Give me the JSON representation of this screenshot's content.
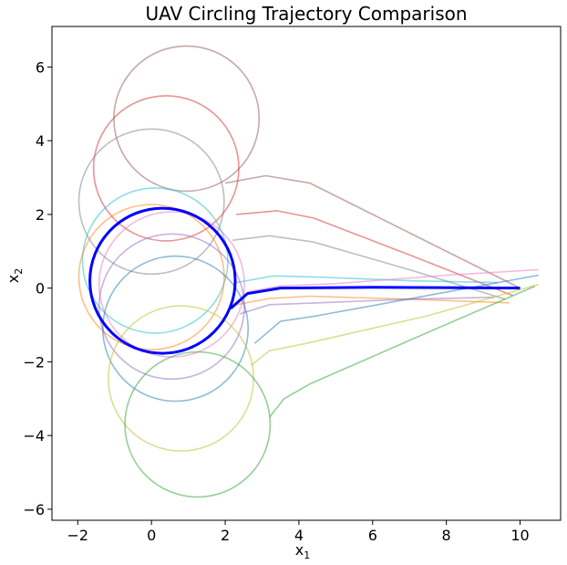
{
  "chart_data": {
    "type": "line",
    "title": "UAV Circling Trajectory Comparison",
    "xlabel": "x",
    "xlabel_sub": "1",
    "ylabel": "x",
    "ylabel_sub": "2",
    "xlim": [
      -2.7,
      11.1
    ],
    "ylim": [
      -6.3,
      7.1
    ],
    "xticks": [
      -2,
      0,
      2,
      4,
      6,
      8,
      10
    ],
    "yticks": [
      -6,
      -4,
      -2,
      0,
      2,
      4,
      6
    ],
    "xtick_labels": [
      "−2",
      "0",
      "2",
      "4",
      "6",
      "8",
      "10"
    ],
    "ytick_labels": [
      "−6",
      "−4",
      "−2",
      "0",
      "2",
      "4",
      "6"
    ],
    "grid": false,
    "series": [
      {
        "color": "#8c564b",
        "approach": [
          [
            10.0,
            0.0
          ],
          [
            7.0,
            1.5
          ],
          [
            4.3,
            2.85
          ],
          [
            3.1,
            3.05
          ],
          [
            2.0,
            2.85
          ]
        ],
        "center": [
          0.95,
          4.6
        ],
        "radius": 1.97
      },
      {
        "color": "#d62728",
        "approach": [
          [
            9.8,
            -0.2
          ],
          [
            7.0,
            0.9
          ],
          [
            4.4,
            1.9
          ],
          [
            3.4,
            2.1
          ],
          [
            2.3,
            2.0
          ]
        ],
        "center": [
          0.4,
          3.25
        ],
        "radius": 1.97
      },
      {
        "color": "#7f7f7f",
        "approach": [
          [
            9.6,
            -0.3
          ],
          [
            7.0,
            0.5
          ],
          [
            4.4,
            1.25
          ],
          [
            3.2,
            1.42
          ],
          [
            2.2,
            1.3
          ]
        ],
        "center": [
          0.0,
          2.35
        ],
        "radius": 1.97
      },
      {
        "color": "#17becf",
        "approach": [
          [
            9.4,
            0.15
          ],
          [
            7.0,
            0.2
          ],
          [
            4.5,
            0.3
          ],
          [
            3.3,
            0.33
          ],
          [
            2.3,
            0.15
          ]
        ],
        "center": [
          0.1,
          0.75
        ],
        "radius": 1.97
      },
      {
        "color": "#e377c2",
        "approach": [
          [
            10.5,
            0.5
          ],
          [
            8.0,
            0.35
          ],
          [
            5.0,
            0.12
          ],
          [
            3.5,
            0.06
          ],
          [
            2.6,
            -0.1
          ]
        ],
        "center": [
          0.55,
          0.1
        ],
        "radius": 1.97
      },
      {
        "color": "#ff7f0e",
        "approach": [
          [
            9.7,
            -0.4
          ],
          [
            7.0,
            -0.3
          ],
          [
            4.3,
            -0.22
          ],
          [
            3.2,
            -0.28
          ],
          [
            2.3,
            -0.45
          ]
        ],
        "center": [
          0.0,
          0.3
        ],
        "radius": 1.97
      },
      {
        "color": "#9467bd",
        "approach": [
          [
            9.3,
            -0.25
          ],
          [
            7.0,
            -0.3
          ],
          [
            4.5,
            -0.4
          ],
          [
            3.2,
            -0.45
          ],
          [
            2.4,
            -0.7
          ]
        ],
        "center": [
          0.55,
          -0.5
        ],
        "radius": 1.97
      },
      {
        "color": "#1f77b4",
        "approach": [
          [
            10.5,
            0.35
          ],
          [
            7.5,
            -0.2
          ],
          [
            4.5,
            -0.75
          ],
          [
            3.5,
            -0.9
          ],
          [
            2.8,
            -1.5
          ]
        ],
        "center": [
          0.65,
          -1.1
        ],
        "radius": 1.97
      },
      {
        "color": "#bcbd22",
        "approach": [
          [
            10.5,
            0.1
          ],
          [
            7.5,
            -0.75
          ],
          [
            4.2,
            -1.5
          ],
          [
            3.2,
            -1.7
          ],
          [
            2.7,
            -2.1
          ]
        ],
        "center": [
          0.8,
          -2.45
        ],
        "radius": 1.97
      },
      {
        "color": "#2ca02c",
        "approach": [
          [
            10.4,
            0.05
          ],
          [
            7.5,
            -1.2
          ],
          [
            4.3,
            -2.6
          ],
          [
            3.6,
            -3.0
          ],
          [
            3.2,
            -3.5
          ]
        ],
        "center": [
          1.25,
          -3.7
        ],
        "radius": 1.97
      }
    ],
    "highlight": {
      "color": "#0000ff",
      "approach": [
        [
          10.0,
          0.0
        ],
        [
          6.0,
          0.02
        ],
        [
          3.5,
          0.0
        ],
        [
          2.6,
          -0.15
        ],
        [
          2.15,
          -0.55
        ]
      ],
      "center": [
        0.3,
        0.2
      ],
      "radius": 1.97
    }
  }
}
